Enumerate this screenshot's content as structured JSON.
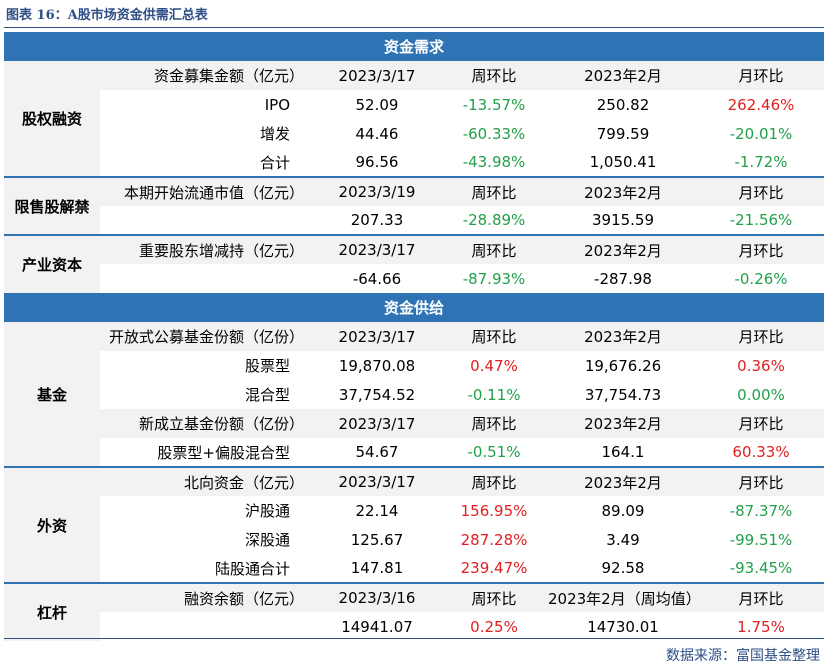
{
  "caption": "图表 16：A股市场资金供需汇总表",
  "source": "数据来源：富国基金整理",
  "colors": {
    "banner": "#2e74b5",
    "up": "#e02020",
    "down": "#22a04a"
  },
  "demand": {
    "title": "资金需求",
    "equity": {
      "category": "股权融资",
      "header": [
        "资金募集金额（亿元）",
        "2023/3/17",
        "周环比",
        "2023年2月",
        "月环比"
      ],
      "rows": [
        [
          "IPO",
          "52.09",
          "-13.57%",
          "250.82",
          "262.46%"
        ],
        [
          "增发",
          "44.46",
          "-60.33%",
          "799.59",
          "-20.01%"
        ],
        [
          "合计",
          "96.56",
          "-43.98%",
          "1,050.41",
          "-1.72%"
        ]
      ]
    },
    "lockup": {
      "category": "限售股解禁",
      "header": [
        "本期开始流通市值（亿元）",
        "2023/3/19",
        "周环比",
        "2023年2月",
        "月环比"
      ],
      "row": [
        "",
        "207.33",
        "-28.89%",
        "3915.59",
        "-21.56%"
      ]
    },
    "industry": {
      "category": "产业资本",
      "header": [
        "重要股东增减持（亿元）",
        "2023/3/17",
        "周环比",
        "2023年2月",
        "月环比"
      ],
      "row": [
        "",
        "-64.66",
        "-87.93%",
        "-287.98",
        "-0.26%"
      ]
    }
  },
  "supply": {
    "title": "资金供给",
    "fund": {
      "category": "基金",
      "header1": [
        "开放式公募基金份额（亿份）",
        "2023/3/17",
        "周环比",
        "2023年2月",
        "月环比"
      ],
      "rows1": [
        [
          "股票型",
          "19,870.08",
          "0.47%",
          "19,676.26",
          "0.36%"
        ],
        [
          "混合型",
          "37,754.52",
          "-0.11%",
          "37,754.73",
          "0.00%"
        ]
      ],
      "header2": [
        "新成立基金份额（亿份）",
        "2023/3/17",
        "周环比",
        "2023年2月",
        "月环比"
      ],
      "row2": [
        "股票型+偏股混合型",
        "54.67",
        "-0.51%",
        "164.1",
        "60.33%"
      ]
    },
    "foreign": {
      "category": "外资",
      "header": [
        "北向资金（亿元）",
        "2023/3/17",
        "周环比",
        "2023年2月",
        "月环比"
      ],
      "rows": [
        [
          "沪股通",
          "22.14",
          "156.95%",
          "89.09",
          "-87.37%"
        ],
        [
          "深股通",
          "125.67",
          "287.28%",
          "3.49",
          "-99.51%"
        ],
        [
          "陆股通合计",
          "147.81",
          "239.47%",
          "92.58",
          "-93.45%"
        ]
      ]
    },
    "leverage": {
      "category": "杠杆",
      "header": [
        "融资余额（亿元）",
        "2023/3/16",
        "周环比",
        "2023年2月（周均值）",
        "月环比"
      ],
      "row": [
        "",
        "14941.07",
        "0.25%",
        "14730.01",
        "1.75%"
      ]
    }
  }
}
